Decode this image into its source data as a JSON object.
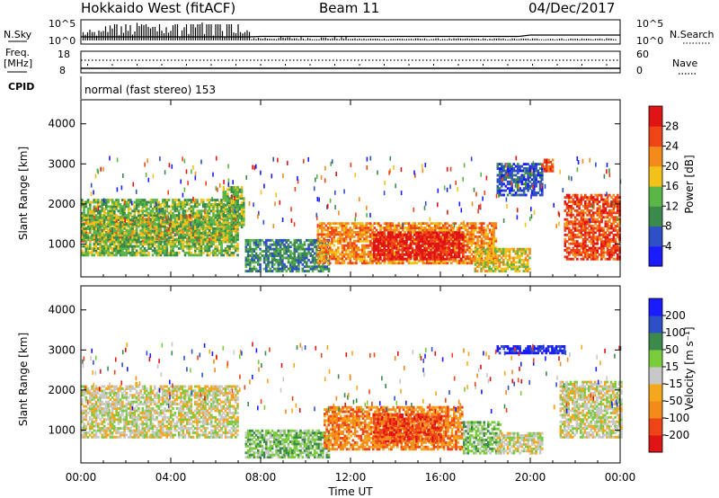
{
  "header": {
    "station": "Hokkaido West (fitACF)",
    "beam": "Beam 11",
    "date": "04/Dec/2017"
  },
  "noise_panel": {
    "left_label": "N.Sky",
    "right_label": "N.Search",
    "left_ticks": [
      "10^5",
      "10^0"
    ],
    "right_ticks": [
      "10^5",
      "10^0"
    ]
  },
  "freq_panel": {
    "left_label_1": "Freq.",
    "left_label_2": "[MHz]",
    "right_label": "Nave",
    "left_ticks": [
      "18",
      "8"
    ],
    "right_ticks": [
      "60",
      "0"
    ]
  },
  "cpid_panel": {
    "left_label": "CPID",
    "text": "normal (fast stereo) 153"
  },
  "chart_data": [
    {
      "type": "heatmap",
      "name": "power",
      "ylabel": "Slant Range [km]",
      "xlabel": "",
      "ylim": [
        180,
        4600
      ],
      "yticks": [
        1000,
        2000,
        3000,
        4000
      ],
      "colorbar_label": "Power [dB]",
      "colorbar_ticks": [
        "4",
        "8",
        "12",
        "16",
        "20",
        "24",
        "28"
      ],
      "colorbar_colors": [
        "#1b1bff",
        "#2f4fc8",
        "#3b8a4c",
        "#5ab646",
        "#f2c21a",
        "#f48a1a",
        "#ee4418",
        "#e01414"
      ],
      "regions": [
        {
          "t0": 0.0,
          "t1": 7.0,
          "r0": 1050,
          "r1": 1700,
          "level": 5
        },
        {
          "t0": 0.0,
          "t1": 7.0,
          "r0": 700,
          "r1": 2100,
          "level": 3
        },
        {
          "t0": 6.3,
          "t1": 7.2,
          "r0": 1400,
          "r1": 2400,
          "level": 3
        },
        {
          "t0": 7.3,
          "t1": 11.0,
          "r0": 300,
          "r1": 1100,
          "level": 2
        },
        {
          "t0": 10.5,
          "t1": 18.5,
          "r0": 500,
          "r1": 1500,
          "level": 5
        },
        {
          "t0": 13.0,
          "t1": 17.0,
          "r0": 600,
          "r1": 1300,
          "level": 7
        },
        {
          "t0": 17.5,
          "t1": 20.0,
          "r0": 300,
          "r1": 900,
          "level": 4
        },
        {
          "t0": 21.5,
          "t1": 24.0,
          "r0": 600,
          "r1": 2200,
          "level": 6
        },
        {
          "t0": 18.5,
          "t1": 20.5,
          "r0": 2200,
          "r1": 3000,
          "level": 1
        },
        {
          "t0": 20.5,
          "t1": 21.0,
          "r0": 2800,
          "r1": 3100,
          "level": 6
        }
      ]
    },
    {
      "type": "heatmap",
      "name": "velocity",
      "ylabel": "Slant Range [km]",
      "xlabel": "Time UT",
      "ylim": [
        180,
        4600
      ],
      "yticks": [
        1000,
        2000,
        3000,
        4000
      ],
      "xticks": [
        "00:00",
        "04:00",
        "08:00",
        "12:00",
        "16:00",
        "20:00",
        "00:00"
      ],
      "colorbar_label": "Velocity [m s⁻¹]",
      "colorbar_ticks": [
        "-200",
        "-100",
        "-50",
        "-15",
        "15",
        "50",
        "100",
        "200"
      ],
      "colorbar_colors": [
        "#e01414",
        "#ee4418",
        "#f48a1a",
        "#f5a81e",
        "#c8c8c8",
        "#7acc3c",
        "#3b8a4c",
        "#2f4fc8",
        "#1b1bff"
      ],
      "regions": [
        {
          "t0": 0.0,
          "t1": 7.0,
          "r0": 800,
          "r1": 2100,
          "level": 4
        },
        {
          "t0": 7.3,
          "t1": 11.0,
          "r0": 300,
          "r1": 1000,
          "level": 5
        },
        {
          "t0": 10.8,
          "t1": 17.0,
          "r0": 500,
          "r1": 1600,
          "level": 2
        },
        {
          "t0": 13.0,
          "t1": 16.0,
          "r0": 700,
          "r1": 1400,
          "level": 1
        },
        {
          "t0": 17.0,
          "t1": 18.7,
          "r0": 400,
          "r1": 1200,
          "level": 5
        },
        {
          "t0": 18.5,
          "t1": 20.5,
          "r0": 400,
          "r1": 900,
          "level": 4
        },
        {
          "t0": 21.3,
          "t1": 24.0,
          "r0": 800,
          "r1": 2200,
          "level": 4
        },
        {
          "t0": 18.5,
          "t1": 21.5,
          "r0": 2900,
          "r1": 3100,
          "level": 8
        }
      ]
    }
  ],
  "time_range_hours": [
    0,
    24
  ]
}
